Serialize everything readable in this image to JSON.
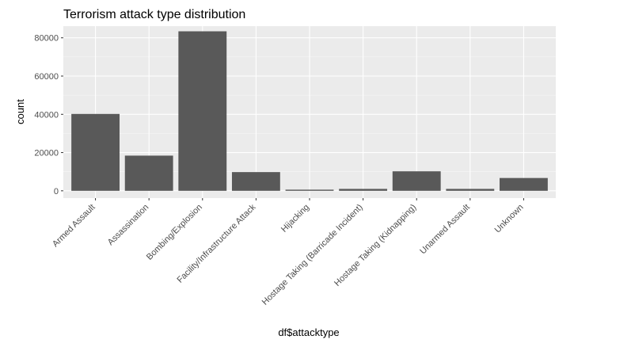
{
  "chart_data": {
    "type": "bar",
    "title": "Terrorism attack type distribution",
    "xlabel": "df$attacktype",
    "ylabel": "count",
    "categories": [
      "Armed Assault",
      "Assassination",
      "Bombing/Explosion",
      "Facility/Infrastructure Attack",
      "Hijacking",
      "Hostage Taking (Barricade Incident)",
      "Hostage Taking (Kidnapping)",
      "Unarmed Assault",
      "Unknown"
    ],
    "values": [
      40200,
      18400,
      83400,
      9800,
      600,
      1000,
      10200,
      1000,
      6700
    ],
    "ylim": [
      -3800,
      86100
    ],
    "yticks": [
      0,
      20000,
      40000,
      60000,
      80000
    ],
    "ytick_labels": [
      "0",
      "20000",
      "40000",
      "60000",
      "80000"
    ],
    "grid": true,
    "legend": "none",
    "colors": {
      "bar": "#595959",
      "panel": "#ebebeb",
      "grid_major": "#ffffff",
      "tick_text": "#4d4d4d",
      "tick_mark": "#333333"
    }
  }
}
